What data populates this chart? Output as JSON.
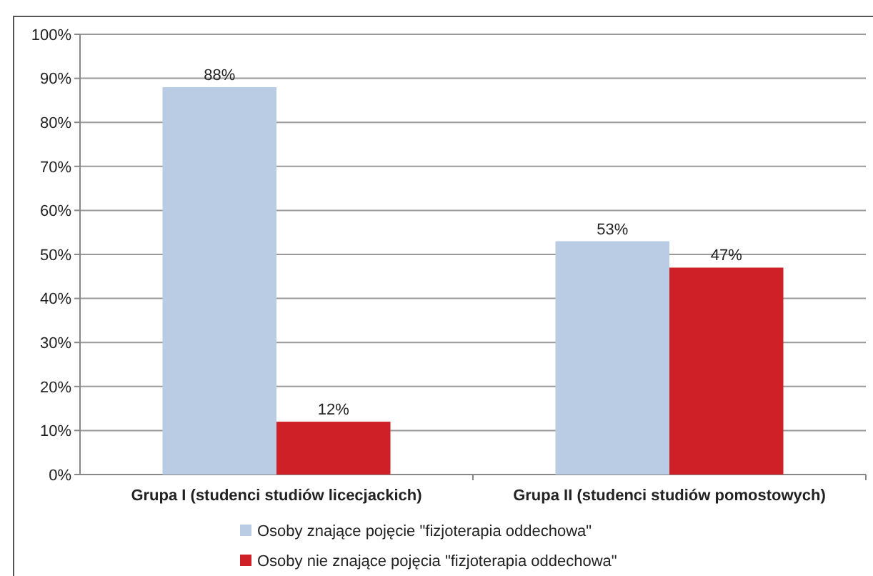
{
  "chart_data": {
    "type": "bar",
    "categories": [
      "Grupa I (studenci studiów licecjackich)",
      "Grupa II (studenci studiów pomostowych)"
    ],
    "series": [
      {
        "name": "Osoby znające pojęcie \"fizjoterapia oddechowa\"",
        "color": "#b9cce4",
        "values": [
          88,
          53
        ],
        "value_labels": [
          "88%",
          "53%"
        ]
      },
      {
        "name": "Osoby nie znające pojęcia \"fizjoterapia oddechowa\"",
        "color": "#d02027",
        "values": [
          12,
          47
        ],
        "value_labels": [
          "12%",
          "47%"
        ]
      }
    ],
    "ylim": [
      0,
      100
    ],
    "yticks": [
      {
        "value": 0,
        "label": "0%"
      },
      {
        "value": 10,
        "label": "10%"
      },
      {
        "value": 20,
        "label": "20%"
      },
      {
        "value": 30,
        "label": "30%"
      },
      {
        "value": 40,
        "label": "40%"
      },
      {
        "value": 50,
        "label": "50%"
      },
      {
        "value": 60,
        "label": "60%"
      },
      {
        "value": 70,
        "label": "70%"
      },
      {
        "value": 80,
        "label": "80%"
      },
      {
        "value": 90,
        "label": "90%"
      },
      {
        "value": 100,
        "label": "100%"
      }
    ],
    "grid": "y",
    "legend": "bottom"
  }
}
